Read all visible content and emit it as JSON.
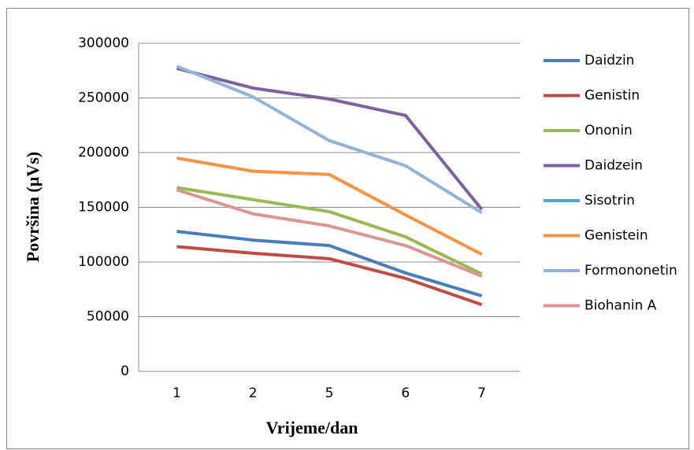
{
  "chart_data": {
    "type": "line",
    "x_label": "Vrijeme/dan",
    "y_label": "Površina (µVs)",
    "categories": [
      "1",
      "2",
      "5",
      "6",
      "7"
    ],
    "series": [
      {
        "name": "Daidzin",
        "color": "#4a7ebb",
        "values": [
          128000,
          120000,
          115000,
          90000,
          69000
        ]
      },
      {
        "name": "Genistin",
        "color": "#be4b48",
        "values": [
          114000,
          108000,
          103000,
          85000,
          61000
        ]
      },
      {
        "name": "Ononin",
        "color": "#98b954",
        "values": [
          168000,
          157000,
          146000,
          123000,
          89000
        ]
      },
      {
        "name": "Daidzein",
        "color": "#7d60a0",
        "values": [
          277000,
          259000,
          249000,
          234000,
          148000
        ]
      },
      {
        "name": "Sisotrin",
        "color": "#46aac5",
        "values": [
          null,
          null,
          null,
          null,
          null
        ]
      },
      {
        "name": "Genistein",
        "color": "#f69240",
        "values": [
          195000,
          183000,
          180000,
          143000,
          107000
        ]
      },
      {
        "name": "Formononetin",
        "color": "#95b3d7",
        "values": [
          279000,
          251000,
          211000,
          188000,
          145000
        ]
      },
      {
        "name": "Biohanin A",
        "color": "#d99694",
        "values": [
          166000,
          144000,
          133000,
          115000,
          87000
        ]
      }
    ],
    "ylim": [
      0,
      300000
    ],
    "yticks": [
      0,
      50000,
      100000,
      150000,
      200000,
      250000,
      300000
    ],
    "grid": true
  }
}
